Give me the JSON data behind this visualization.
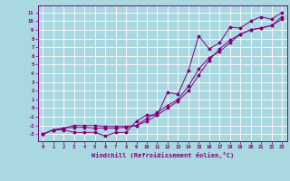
{
  "x": [
    0,
    1,
    2,
    3,
    4,
    5,
    6,
    7,
    8,
    9,
    10,
    11,
    12,
    13,
    14,
    15,
    16,
    17,
    18,
    19,
    20,
    21,
    22,
    23
  ],
  "line1": [
    -3,
    -2.5,
    -2.5,
    -2.8,
    -2.8,
    -2.8,
    -3.2,
    -2.8,
    -2.8,
    -1.5,
    -0.8,
    -0.8,
    1.8,
    1.6,
    4.3,
    8.3,
    6.8,
    7.5,
    9.3,
    9.2,
    10.0,
    10.5,
    10.2,
    11.0
  ],
  "line2": [
    -3,
    -2.5,
    -2.3,
    -2.2,
    -2.2,
    -2.3,
    -2.3,
    -2.3,
    -2.2,
    -2.0,
    -1.2,
    -0.5,
    0.3,
    1.0,
    2.5,
    4.5,
    5.8,
    6.5,
    7.5,
    8.5,
    9.0,
    9.2,
    9.5,
    10.5
  ],
  "line3": [
    -3,
    -2.5,
    -2.3,
    -2.0,
    -2.0,
    -2.0,
    -2.1,
    -2.1,
    -2.1,
    -2.0,
    -1.5,
    -0.8,
    0.0,
    0.8,
    2.0,
    3.8,
    5.5,
    6.8,
    7.8,
    8.5,
    9.0,
    9.2,
    9.5,
    10.2
  ],
  "color": "#800080",
  "bg_color": "#aad8e0",
  "grid_color": "#ffffff",
  "xlabel": "Windchill (Refroidissement éolien,°C)",
  "xlim": [
    -0.5,
    23.5
  ],
  "ylim": [
    -3.8,
    11.8
  ],
  "yticks": [
    -3,
    -2,
    -1,
    0,
    1,
    2,
    3,
    4,
    5,
    6,
    7,
    8,
    9,
    10,
    11
  ],
  "xticks": [
    0,
    1,
    2,
    3,
    4,
    5,
    6,
    7,
    8,
    9,
    10,
    11,
    12,
    13,
    14,
    15,
    16,
    17,
    18,
    19,
    20,
    21,
    22,
    23
  ]
}
